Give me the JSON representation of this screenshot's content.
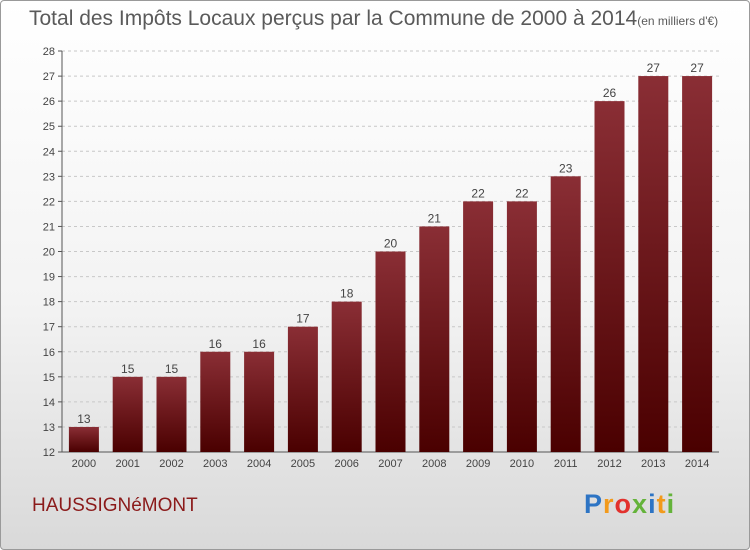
{
  "title": "Total des Impôts Locaux perçus par la Commune de 2000 à 2014",
  "title_unit": "(en milliers d'€)",
  "commune": "HAUSSIGNéMONT",
  "brand": {
    "letters": [
      "P",
      "r",
      "o",
      "x",
      "i",
      "t",
      "i"
    ],
    "colors": [
      "#2d74c4",
      "#f29a1b",
      "#e2312d",
      "#64b33a",
      "#2d74c4",
      "#f29a1b",
      "#64b33a"
    ]
  },
  "chart_data": {
    "type": "bar",
    "title": "Total des Impôts Locaux perçus par la Commune de 2000 à 2014",
    "xlabel": "",
    "ylabel": "",
    "categories": [
      "2000",
      "2001",
      "2002",
      "2003",
      "2004",
      "2005",
      "2006",
      "2007",
      "2008",
      "2009",
      "2010",
      "2011",
      "2012",
      "2013",
      "2014"
    ],
    "values": [
      13,
      15,
      15,
      16,
      16,
      17,
      18,
      20,
      21,
      22,
      22,
      23,
      26,
      27,
      27
    ],
    "ylim": [
      12,
      28
    ],
    "yticks": [
      12,
      13,
      14,
      15,
      16,
      17,
      18,
      19,
      20,
      21,
      22,
      23,
      24,
      25,
      26,
      27,
      28
    ],
    "grid": "horizontal dashed",
    "bar_color": "#7a1c24",
    "legend": "none"
  }
}
